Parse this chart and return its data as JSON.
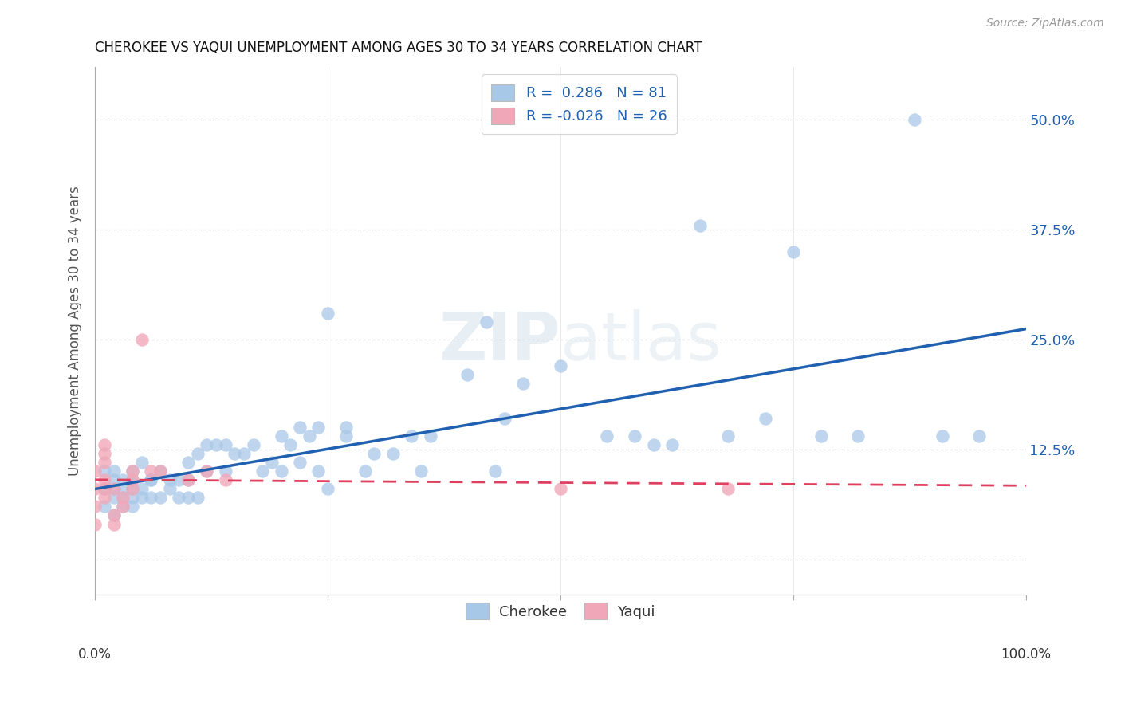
{
  "title": "CHEROKEE VS YAQUI UNEMPLOYMENT AMONG AGES 30 TO 34 YEARS CORRELATION CHART",
  "source": "Source: ZipAtlas.com",
  "ylabel": "Unemployment Among Ages 30 to 34 years",
  "y_ticks": [
    0.0,
    0.125,
    0.25,
    0.375,
    0.5
  ],
  "y_tick_labels_right": [
    "",
    "12.5%",
    "25.0%",
    "37.5%",
    "50.0%"
  ],
  "xlim": [
    0.0,
    1.0
  ],
  "ylim": [
    -0.04,
    0.56
  ],
  "watermark": "ZIPatlas",
  "legend_cherokee_label": "Cherokee",
  "legend_yaqui_label": "Yaqui",
  "cherokee_color": "#a8c8e8",
  "cherokee_line_color": "#2060b0",
  "yaqui_color": "#f0a8b8",
  "yaqui_line_color": "#e04060",
  "cherokee_x": [
    0.01,
    0.01,
    0.01,
    0.02,
    0.02,
    0.02,
    0.02,
    0.02,
    0.03,
    0.03,
    0.03,
    0.03,
    0.04,
    0.04,
    0.04,
    0.04,
    0.04,
    0.05,
    0.05,
    0.05,
    0.06,
    0.06,
    0.06,
    0.07,
    0.07,
    0.08,
    0.08,
    0.09,
    0.09,
    0.1,
    0.1,
    0.1,
    0.11,
    0.11,
    0.12,
    0.12,
    0.13,
    0.14,
    0.14,
    0.15,
    0.16,
    0.17,
    0.18,
    0.19,
    0.2,
    0.2,
    0.21,
    0.22,
    0.22,
    0.23,
    0.24,
    0.24,
    0.25,
    0.25,
    0.27,
    0.27,
    0.29,
    0.3,
    0.32,
    0.34,
    0.35,
    0.36,
    0.4,
    0.42,
    0.43,
    0.44,
    0.46,
    0.5,
    0.55,
    0.58,
    0.6,
    0.62,
    0.65,
    0.68,
    0.72,
    0.75,
    0.78,
    0.82,
    0.88,
    0.91,
    0.95
  ],
  "cherokee_y": [
    0.06,
    0.1,
    0.08,
    0.05,
    0.08,
    0.07,
    0.1,
    0.09,
    0.07,
    0.09,
    0.08,
    0.06,
    0.07,
    0.08,
    0.1,
    0.06,
    0.09,
    0.08,
    0.11,
    0.07,
    0.09,
    0.07,
    0.09,
    0.1,
    0.07,
    0.09,
    0.08,
    0.09,
    0.07,
    0.09,
    0.11,
    0.07,
    0.12,
    0.07,
    0.1,
    0.13,
    0.13,
    0.13,
    0.1,
    0.12,
    0.12,
    0.13,
    0.1,
    0.11,
    0.14,
    0.1,
    0.13,
    0.11,
    0.15,
    0.14,
    0.15,
    0.1,
    0.28,
    0.08,
    0.15,
    0.14,
    0.1,
    0.12,
    0.12,
    0.14,
    0.1,
    0.14,
    0.21,
    0.27,
    0.1,
    0.16,
    0.2,
    0.22,
    0.14,
    0.14,
    0.13,
    0.13,
    0.38,
    0.14,
    0.16,
    0.35,
    0.14,
    0.14,
    0.5,
    0.14,
    0.14
  ],
  "yaqui_x": [
    0.0,
    0.0,
    0.0,
    0.0,
    0.01,
    0.01,
    0.01,
    0.01,
    0.01,
    0.01,
    0.02,
    0.02,
    0.02,
    0.03,
    0.03,
    0.04,
    0.04,
    0.04,
    0.05,
    0.06,
    0.07,
    0.1,
    0.12,
    0.14,
    0.5,
    0.68
  ],
  "yaqui_y": [
    0.06,
    0.1,
    0.08,
    0.04,
    0.13,
    0.11,
    0.09,
    0.12,
    0.08,
    0.07,
    0.08,
    0.05,
    0.04,
    0.07,
    0.06,
    0.08,
    0.09,
    0.1,
    0.25,
    0.1,
    0.1,
    0.09,
    0.1,
    0.09,
    0.08,
    0.08
  ],
  "background_color": "#ffffff",
  "grid_color": "#cccccc"
}
